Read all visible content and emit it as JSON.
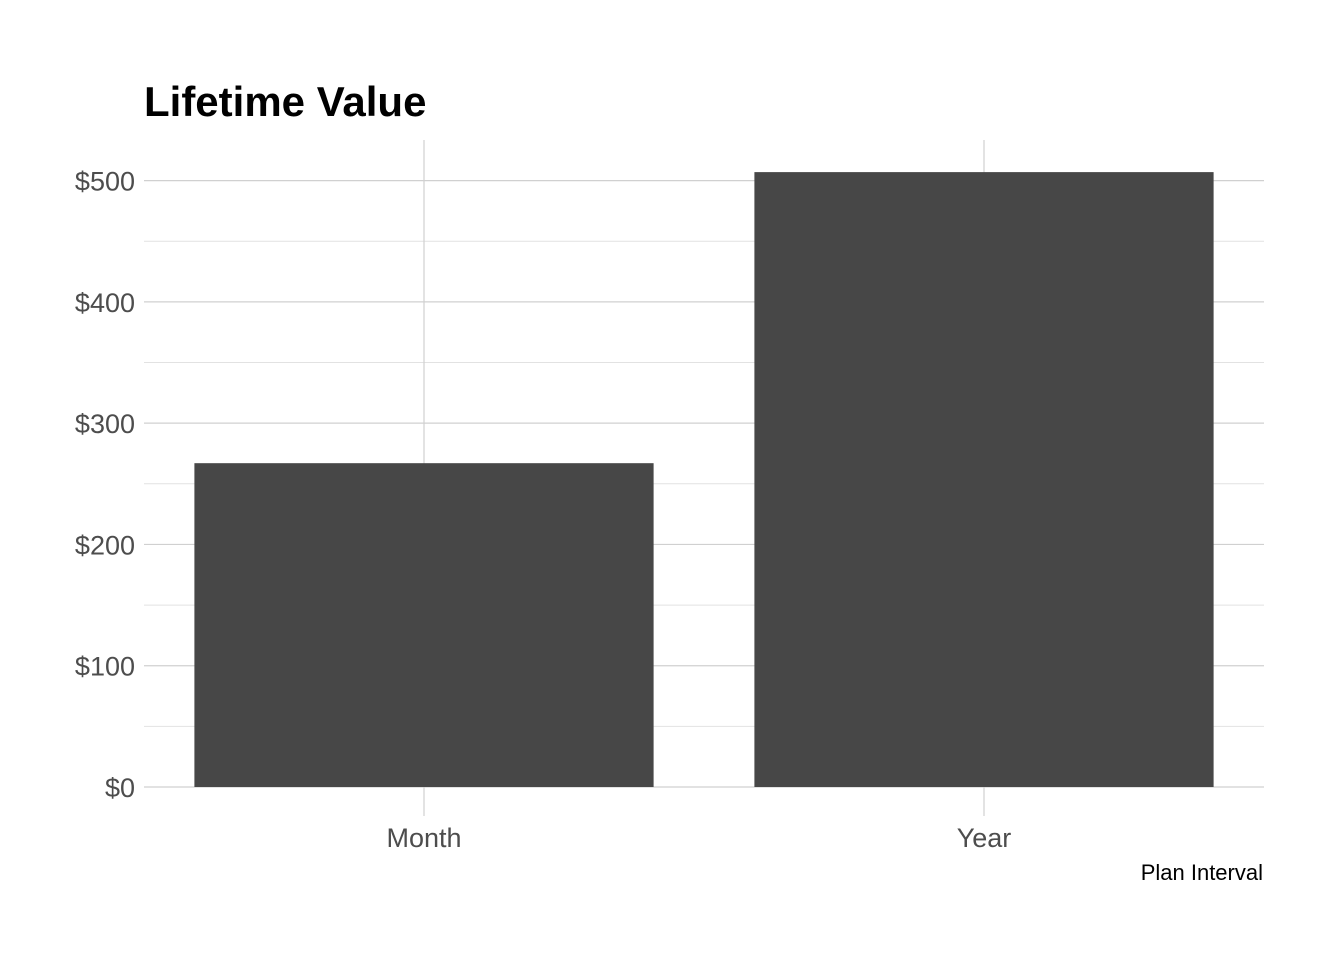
{
  "chart_data": {
    "type": "bar",
    "title": "Lifetime Value",
    "xlabel": "Plan Interval",
    "ylabel": "",
    "categories": [
      "Month",
      "Year"
    ],
    "values": [
      267,
      507
    ],
    "ylim": [
      0,
      530
    ],
    "y_ticks": [
      0,
      100,
      200,
      300,
      400,
      500
    ],
    "y_tick_labels": [
      "$0",
      "$100",
      "$200",
      "$300",
      "$400",
      "$500"
    ],
    "bar_color": "#474747",
    "grid": true,
    "legend": "none"
  }
}
